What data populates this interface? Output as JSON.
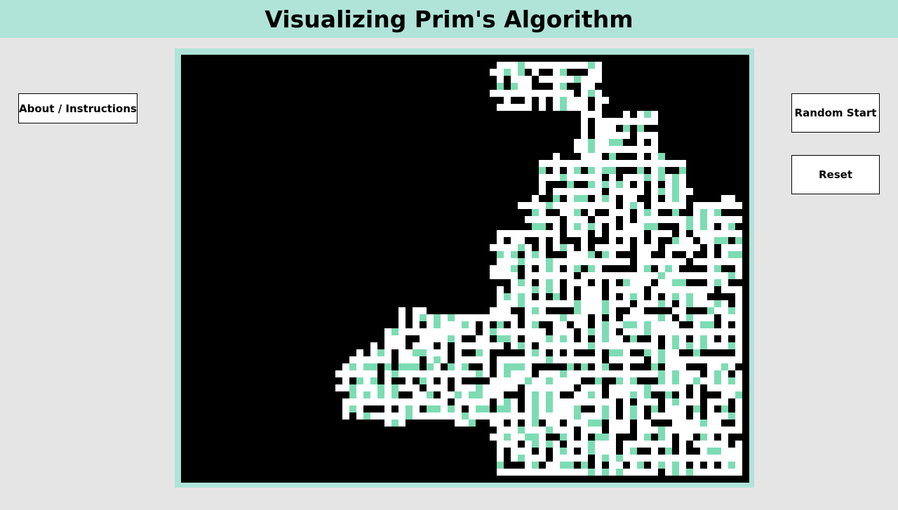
{
  "header": {
    "title": "Visualizing Prim's Algorithm"
  },
  "buttons": {
    "about_label": "About / Instructions",
    "random_start_label": "Random Start",
    "reset_label": "Reset"
  },
  "colors": {
    "background": "#e6e5e5",
    "header": "#b0e4d9",
    "board_border": "#b0e4d9",
    "wall": "#000000",
    "passage": "#ffffff",
    "frontier": "#7ddcb4"
  },
  "maze": {
    "cols": 81,
    "rows": 61,
    "legend": {
      "0": "wall",
      "1": "passage",
      "2": "frontier"
    }
  }
}
